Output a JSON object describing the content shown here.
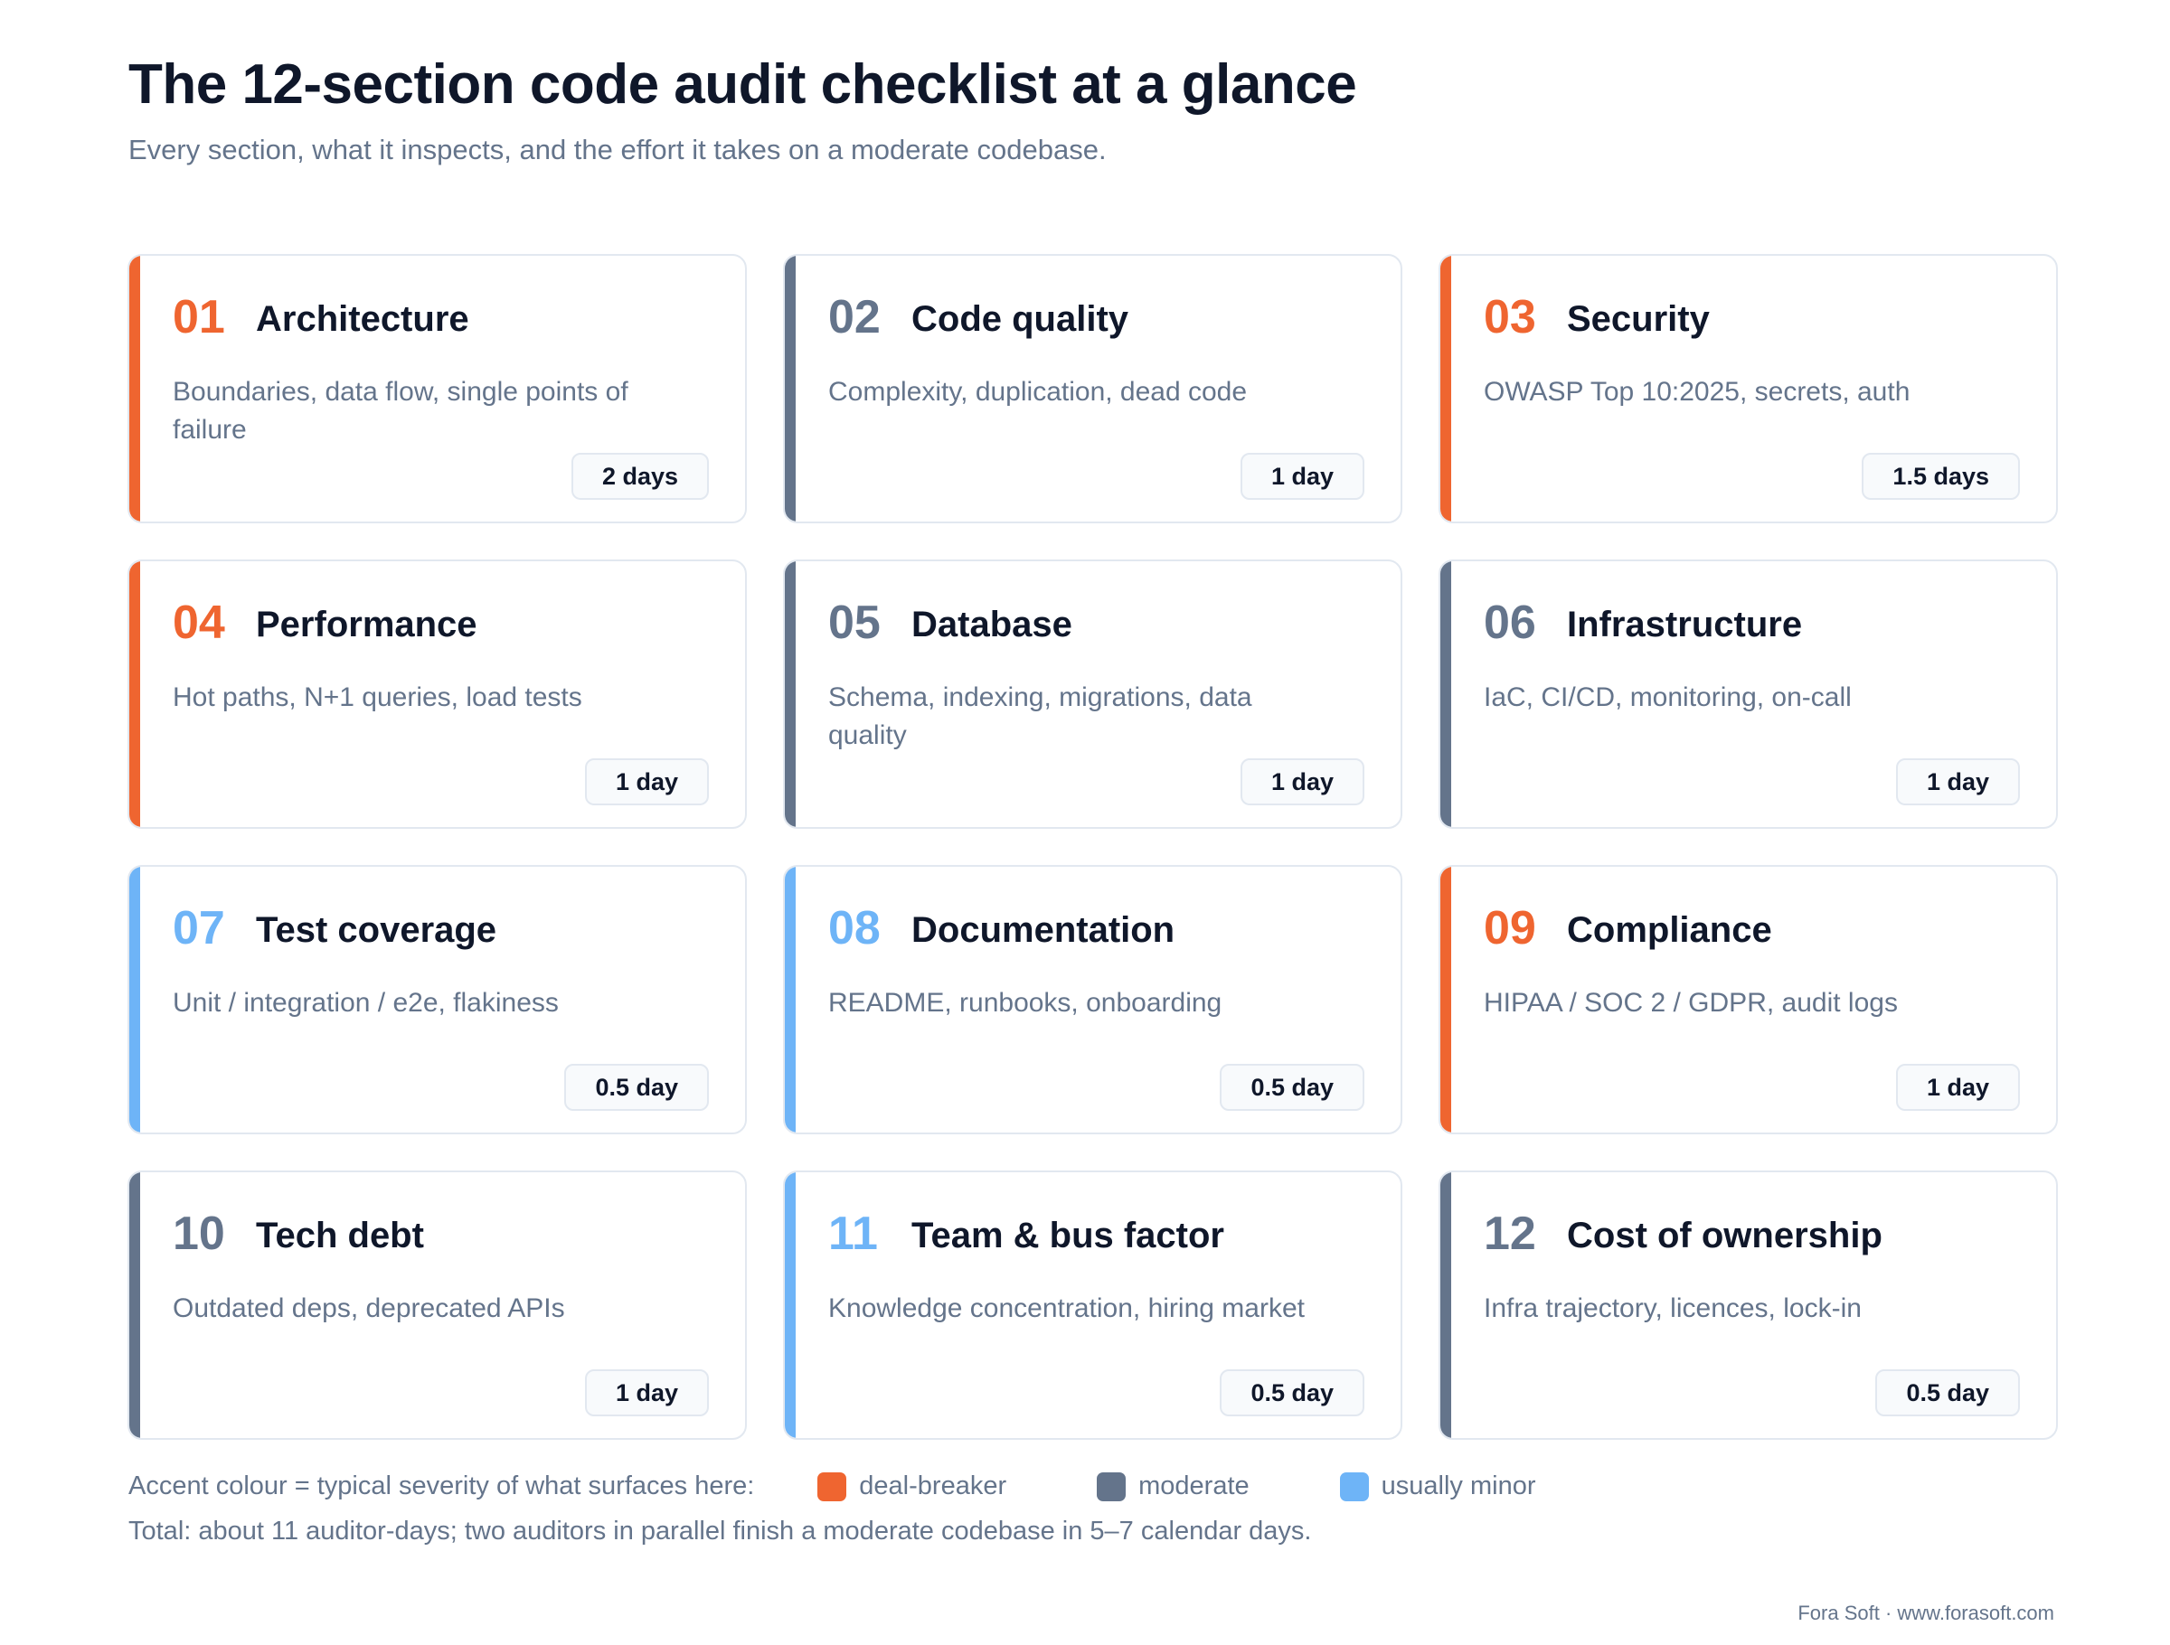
{
  "header": {
    "title": "The 12-section code audit checklist at a glance",
    "subtitle": "Every section, what it inspects, and the effort it takes on a moderate codebase."
  },
  "colors": {
    "deal_breaker": "#ef6530",
    "moderate": "#64748b",
    "usually_minor": "#6eb4f7"
  },
  "sections": [
    {
      "number": "01",
      "name": "Architecture",
      "description": "Boundaries, data flow, single points of failure",
      "effort": "2 days",
      "severity": "deal_breaker"
    },
    {
      "number": "02",
      "name": "Code quality",
      "description": "Complexity, duplication, dead code",
      "effort": "1 day",
      "severity": "moderate"
    },
    {
      "number": "03",
      "name": "Security",
      "description": "OWASP Top 10:2025, secrets, auth",
      "effort": "1.5 days",
      "severity": "deal_breaker"
    },
    {
      "number": "04",
      "name": "Performance",
      "description": "Hot paths, N+1 queries, load tests",
      "effort": "1 day",
      "severity": "deal_breaker"
    },
    {
      "number": "05",
      "name": "Database",
      "description": "Schema, indexing, migrations, data quality",
      "effort": "1 day",
      "severity": "moderate"
    },
    {
      "number": "06",
      "name": "Infrastructure",
      "description": "IaC, CI/CD, monitoring, on-call",
      "effort": "1 day",
      "severity": "moderate"
    },
    {
      "number": "07",
      "name": "Test coverage",
      "description": "Unit / integration / e2e, flakiness",
      "effort": "0.5 day",
      "severity": "usually_minor"
    },
    {
      "number": "08",
      "name": "Documentation",
      "description": "README, runbooks, onboarding",
      "effort": "0.5 day",
      "severity": "usually_minor"
    },
    {
      "number": "09",
      "name": "Compliance",
      "description": "HIPAA / SOC 2 / GDPR, audit logs",
      "effort": "1 day",
      "severity": "deal_breaker"
    },
    {
      "number": "10",
      "name": "Tech debt",
      "description": "Outdated deps, deprecated APIs",
      "effort": "1 day",
      "severity": "moderate"
    },
    {
      "number": "11",
      "name": "Team & bus factor",
      "description": "Knowledge concentration, hiring market",
      "effort": "0.5 day",
      "severity": "usually_minor"
    },
    {
      "number": "12",
      "name": "Cost of ownership",
      "description": "Infra trajectory, licences, lock-in",
      "effort": "0.5 day",
      "severity": "moderate"
    }
  ],
  "legend": {
    "lead": "Accent colour = typical severity of what surfaces here:",
    "deal_breaker": "deal-breaker",
    "moderate": "moderate",
    "usually_minor": "usually minor"
  },
  "total": "Total: about 11 auditor-days; two auditors in parallel finish a moderate codebase in 5–7 calendar days.",
  "footer": "Fora Soft · www.forasoft.com"
}
